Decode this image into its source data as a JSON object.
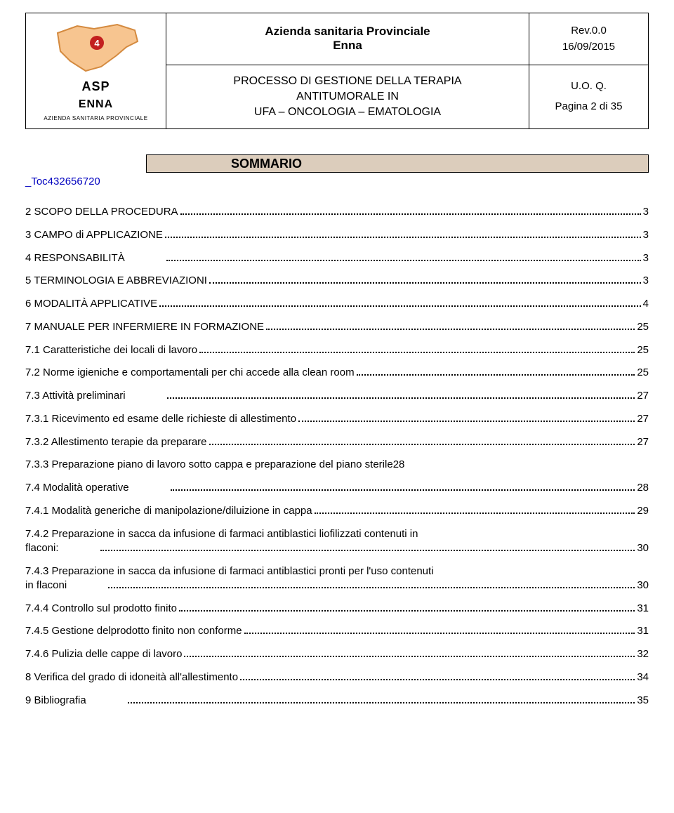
{
  "colors": {
    "sommario_bg": "#dccdbc",
    "link": "#0000bf",
    "sicily_fill": "#f7c590",
    "sicily_stroke": "#d48a3f",
    "marker_fill": "#c3201f",
    "page_bg": "#ffffff",
    "text": "#000000"
  },
  "header": {
    "logo": {
      "line1": "ASP",
      "line2": "ENNA",
      "line3": "AZIENDA SANITARIA PROVINCIALE",
      "badge": "4"
    },
    "org_line1": "Azienda sanitaria Provinciale",
    "org_line2": "Enna",
    "proc_line1": "PROCESSO DI GESTIONE DELLA TERAPIA",
    "proc_line2": "ANTITUMORALE IN",
    "proc_line3": "UFA – ONCOLOGIA – EMATOLOGIA",
    "rev": "Rev.0.0",
    "date": "16/09/2015",
    "uoq": "U.O. Q.",
    "page": "Pagina 2 di 35"
  },
  "sommario": {
    "label": "SOMMARIO",
    "anchor": "_Toc432656720"
  },
  "toc": [
    {
      "label": "2 SCOPO DELLA PROCEDURA",
      "page": "3"
    },
    {
      "label": "3 CAMPO di APPLICAZIONE",
      "page": "3"
    },
    {
      "label": "4 RESPONSABILITÀ",
      "gap": true,
      "page": "3"
    },
    {
      "label": "5 TERMINOLOGIA E ABBREVIAZIONI",
      "page": "3"
    },
    {
      "label": "6 MODALITÀ APPLICATIVE",
      "page": "4"
    },
    {
      "label": "7 MANUALE PER INFERMIERE IN FORMAZIONE",
      "page": "25"
    },
    {
      "label": "7.1 Caratteristiche dei locali di lavoro",
      "page": "25"
    },
    {
      "label": "7.2 Norme igieniche e comportamentali per chi accede alla  clean room",
      "page": "25"
    },
    {
      "label": "7.3 Attività preliminari",
      "gap": true,
      "page": "27"
    },
    {
      "label": "7.3.1 Ricevimento ed esame delle richieste di allestimento",
      "page": "27"
    },
    {
      "label": "7.3.2 Allestimento  terapie da preparare",
      "page": "27"
    },
    {
      "label": "7.3.3 Preparazione piano di lavoro sotto cappa e  preparazione del piano sterile",
      "nodots": true,
      "page": "28"
    },
    {
      "label": "7.4 Modalità operative",
      "gap": true,
      "page": "28"
    },
    {
      "label": "7.4.1 Modalità  generiche di manipolazione/diluizione in cappa",
      "page": "29"
    },
    {
      "label": "7.4.2 Preparazione in sacca da infusione di farmaci antiblastici liofilizzati contenuti in",
      "cont": "flaconi:",
      "gap": true,
      "page": "30"
    },
    {
      "label": "7.4.3 Preparazione in sacca da infusione di farmaci antiblastici pronti per l'uso contenuti",
      "cont": "in flaconi",
      "gap": true,
      "page": "30"
    },
    {
      "label": "7.4.4 Controllo sul prodotto finito",
      "page": "31"
    },
    {
      "label": "7.4.5 Gestione delprodotto finito non conforme",
      "page": "31"
    },
    {
      "label": "7.4.6 Pulizia delle cappe di lavoro",
      "page": "32"
    },
    {
      "label": "8 Verifica del grado di idoneità all'allestimento",
      "page": "34"
    },
    {
      "label": "9 Bibliografia",
      "gap": true,
      "page": "35"
    }
  ]
}
